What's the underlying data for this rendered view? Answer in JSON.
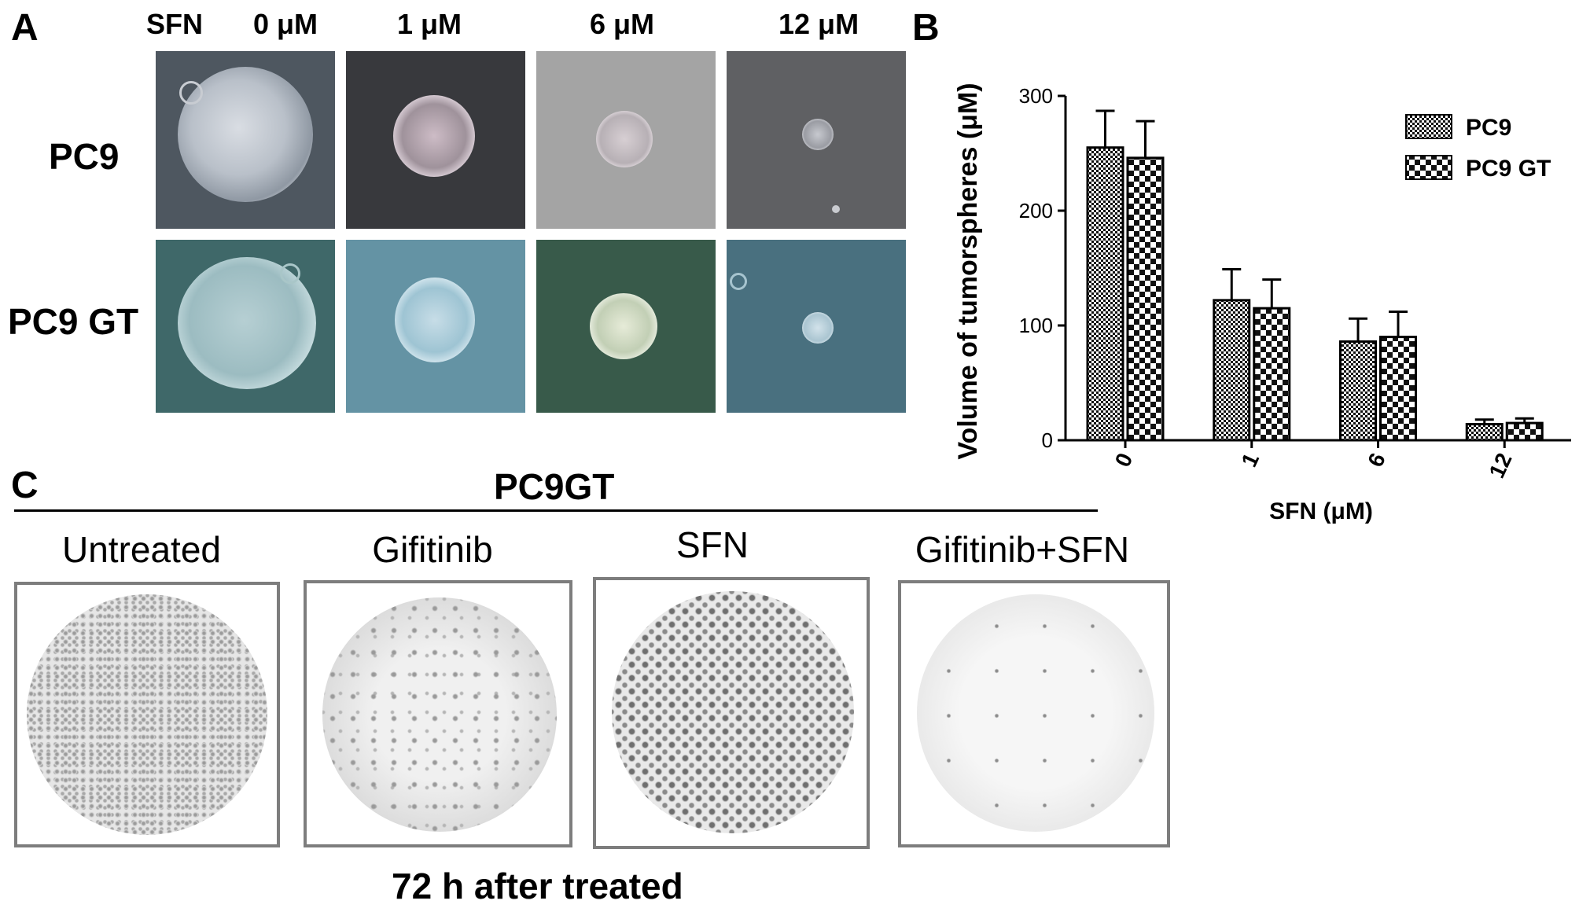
{
  "panelA": {
    "letter": "A",
    "sfn_label": "SFN",
    "concentrations": [
      "0 μM",
      "1 μM",
      "6 μM",
      "12 μM"
    ],
    "rows": [
      "PC9",
      "PC9 GT"
    ]
  },
  "panelB": {
    "letter": "B"
  },
  "panelC": {
    "letter": "C",
    "title": "PC9GT",
    "conditions": [
      "Untreated",
      "Gifitinib",
      "SFN",
      "Gifitinib+SFN"
    ],
    "footer": "72 h after treated"
  },
  "chart_data": {
    "type": "bar",
    "categories": [
      "0",
      "1",
      "6",
      "12"
    ],
    "series": [
      {
        "name": "PC9",
        "values": [
          255,
          122,
          86,
          14
        ],
        "errors": [
          32,
          27,
          20,
          4
        ],
        "pattern": "dense-checker"
      },
      {
        "name": "PC9 GT",
        "values": [
          246,
          115,
          90,
          15
        ],
        "errors": [
          32,
          25,
          22,
          4
        ],
        "pattern": "checker"
      }
    ],
    "xlabel": "SFN (μM)",
    "ylabel": "Volume of tumorspheres (μM)",
    "ylim": [
      0,
      300
    ],
    "yticks": [
      0,
      100,
      200,
      300
    ],
    "legend": "top-right",
    "grid": false
  }
}
